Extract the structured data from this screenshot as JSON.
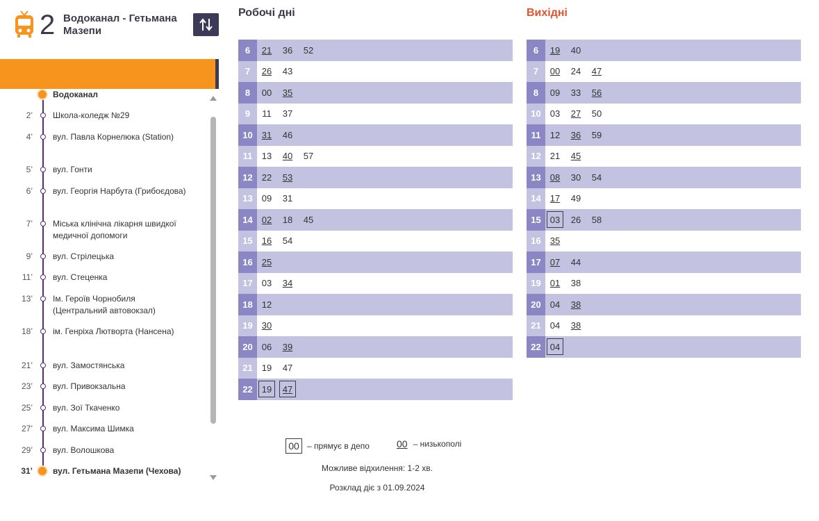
{
  "route": {
    "number": "2",
    "name": "Водоканал - Гетьмана Мазепи",
    "icon": "tram-icon",
    "accent_color": "#f7941d",
    "swap_icon": "swap-direction-icon"
  },
  "stops": [
    {
      "time": "",
      "name": "Водоканал",
      "terminal": true
    },
    {
      "time": "2’",
      "name": "Школа-коледж №29"
    },
    {
      "time": "4’",
      "name": "вул. Павла Корнелюка (Station)"
    },
    {
      "time": "5’",
      "name": "вул. Гонти"
    },
    {
      "time": "6’",
      "name": "вул. Георгія Нарбута (Грибоєдова)"
    },
    {
      "time": "7’",
      "name": "Міська клінічна лікарня швидкої медичної допомоги"
    },
    {
      "time": "9’",
      "name": "вул. Стрілецька"
    },
    {
      "time": "11’",
      "name": "вул. Стеценка"
    },
    {
      "time": "13’",
      "name": "Ім. Героїв Чорнобиля (Центральний автовокзал)"
    },
    {
      "time": "18’",
      "name": "ім. Генріха Лютворта (Нансена)"
    },
    {
      "time": "21’",
      "name": "вул. Замостянська"
    },
    {
      "time": "23’",
      "name": "вул. Привокзальна"
    },
    {
      "time": "25’",
      "name": "вул. Зої Ткаченко"
    },
    {
      "time": "27’",
      "name": "вул. Максима Шимка"
    },
    {
      "time": "29’",
      "name": "вул. Волошкова"
    },
    {
      "time": "31’",
      "name": "вул. Гетьмана Мазепи (Чехова)",
      "terminal": true
    }
  ],
  "weekday": {
    "title": "Робочі дні",
    "rows": [
      {
        "hour": "6",
        "minutes": [
          {
            "m": "21",
            "low": true
          },
          {
            "m": "36"
          },
          {
            "m": "52"
          }
        ]
      },
      {
        "hour": "7",
        "minutes": [
          {
            "m": "26",
            "low": true
          },
          {
            "m": "43"
          }
        ]
      },
      {
        "hour": "8",
        "minutes": [
          {
            "m": "00"
          },
          {
            "m": "35",
            "low": true
          }
        ]
      },
      {
        "hour": "9",
        "minutes": [
          {
            "m": "11"
          },
          {
            "m": "37"
          }
        ]
      },
      {
        "hour": "10",
        "minutes": [
          {
            "m": "31",
            "low": true
          },
          {
            "m": "46"
          }
        ]
      },
      {
        "hour": "11",
        "minutes": [
          {
            "m": "13"
          },
          {
            "m": "40",
            "low": true
          },
          {
            "m": "57"
          }
        ]
      },
      {
        "hour": "12",
        "minutes": [
          {
            "m": "22"
          },
          {
            "m": "53",
            "low": true
          }
        ]
      },
      {
        "hour": "13",
        "minutes": [
          {
            "m": "09"
          },
          {
            "m": "31"
          }
        ]
      },
      {
        "hour": "14",
        "minutes": [
          {
            "m": "02",
            "low": true
          },
          {
            "m": "18"
          },
          {
            "m": "45"
          }
        ]
      },
      {
        "hour": "15",
        "minutes": [
          {
            "m": "16",
            "low": true
          },
          {
            "m": "54"
          }
        ]
      },
      {
        "hour": "16",
        "minutes": [
          {
            "m": "25",
            "low": true
          }
        ]
      },
      {
        "hour": "17",
        "minutes": [
          {
            "m": "03"
          },
          {
            "m": "34",
            "low": true
          }
        ]
      },
      {
        "hour": "18",
        "minutes": [
          {
            "m": "12"
          }
        ]
      },
      {
        "hour": "19",
        "minutes": [
          {
            "m": "30",
            "low": true
          }
        ]
      },
      {
        "hour": "20",
        "minutes": [
          {
            "m": "06"
          },
          {
            "m": "39",
            "low": true
          }
        ]
      },
      {
        "hour": "21",
        "minutes": [
          {
            "m": "19"
          },
          {
            "m": "47"
          }
        ]
      },
      {
        "hour": "22",
        "minutes": [
          {
            "m": "19",
            "depot": true
          },
          {
            "m": "47",
            "low": true,
            "depot": true
          }
        ]
      }
    ]
  },
  "weekend": {
    "title": "Вихідні",
    "title_color": "#e0552d",
    "rows": [
      {
        "hour": "6",
        "minutes": [
          {
            "m": "19",
            "low": true
          },
          {
            "m": "40"
          }
        ]
      },
      {
        "hour": "7",
        "minutes": [
          {
            "m": "00",
            "low": true
          },
          {
            "m": "24"
          },
          {
            "m": "47",
            "low": true
          }
        ]
      },
      {
        "hour": "8",
        "minutes": [
          {
            "m": "09"
          },
          {
            "m": "33"
          },
          {
            "m": "56",
            "low": true
          }
        ]
      },
      {
        "hour": "10",
        "minutes": [
          {
            "m": "03"
          },
          {
            "m": "27",
            "low": true
          },
          {
            "m": "50"
          }
        ]
      },
      {
        "hour": "11",
        "minutes": [
          {
            "m": "12"
          },
          {
            "m": "36",
            "low": true
          },
          {
            "m": "59"
          }
        ]
      },
      {
        "hour": "12",
        "minutes": [
          {
            "m": "21"
          },
          {
            "m": "45",
            "low": true
          }
        ]
      },
      {
        "hour": "13",
        "minutes": [
          {
            "m": "08",
            "low": true
          },
          {
            "m": "30"
          },
          {
            "m": "54"
          }
        ]
      },
      {
        "hour": "14",
        "minutes": [
          {
            "m": "17",
            "low": true
          },
          {
            "m": "49"
          }
        ]
      },
      {
        "hour": "15",
        "minutes": [
          {
            "m": "03",
            "depot": true
          },
          {
            "m": "26"
          },
          {
            "m": "58"
          }
        ]
      },
      {
        "hour": "16",
        "minutes": [
          {
            "m": "35",
            "low": true
          }
        ]
      },
      {
        "hour": "17",
        "minutes": [
          {
            "m": "07",
            "low": true
          },
          {
            "m": "44"
          }
        ]
      },
      {
        "hour": "19",
        "minutes": [
          {
            "m": "01",
            "low": true
          },
          {
            "m": "38"
          }
        ]
      },
      {
        "hour": "20",
        "minutes": [
          {
            "m": "04"
          },
          {
            "m": "38",
            "low": true
          }
        ]
      },
      {
        "hour": "21",
        "minutes": [
          {
            "m": "04"
          },
          {
            "m": "38",
            "low": true
          }
        ]
      },
      {
        "hour": "22",
        "minutes": [
          {
            "m": "04",
            "depot": true
          }
        ]
      }
    ]
  },
  "legend": {
    "depot_sample": "00",
    "depot_label": "– прямує в депо",
    "low_sample": "00",
    "low_label": "– низькополі"
  },
  "notes": {
    "deviation": "Можливе відхилення: 1-2 хв.",
    "valid_from": "Розклад діє з 01.09.2024"
  },
  "colors": {
    "row_dark": "#8a87c4",
    "row_light": "#c3c2e0",
    "route_line": "#5c2a7a"
  }
}
